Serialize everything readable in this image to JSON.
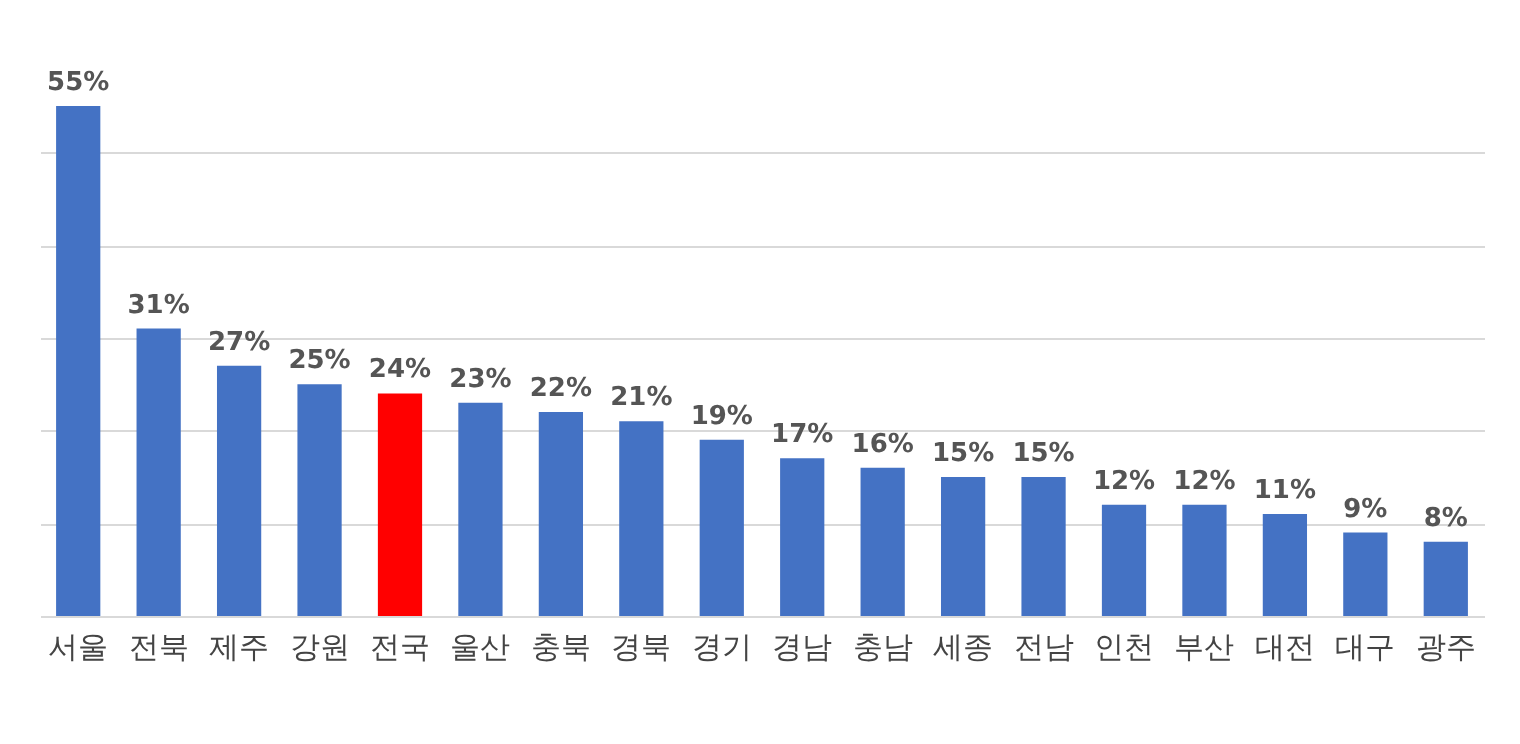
{
  "chart_data": {
    "type": "bar",
    "categories": [
      "서울",
      "전북",
      "제주",
      "강원",
      "전국",
      "울산",
      "충북",
      "경북",
      "경기",
      "경남",
      "충남",
      "세종",
      "전남",
      "인천",
      "부산",
      "대전",
      "대구",
      "광주"
    ],
    "values": [
      55,
      31,
      27,
      25,
      24,
      23,
      22,
      21,
      19,
      17,
      16,
      15,
      15,
      12,
      12,
      11,
      9,
      8
    ],
    "colors": [
      "#4472c4",
      "#4472c4",
      "#4472c4",
      "#4472c4",
      "#ff0000",
      "#4472c4",
      "#4472c4",
      "#4472c4",
      "#4472c4",
      "#4472c4",
      "#4472c4",
      "#4472c4",
      "#4472c4",
      "#4472c4",
      "#4472c4",
      "#4472c4",
      "#4472c4",
      "#4472c4"
    ],
    "value_labels": [
      "55%",
      "31%",
      "27%",
      "25%",
      "24%",
      "23%",
      "22%",
      "21%",
      "19%",
      "17%",
      "16%",
      "15%",
      "15%",
      "12%",
      "12%",
      "11%",
      "9%",
      "8%"
    ],
    "yticks": [
      {
        "value": 0,
        "label": null
      },
      {
        "value": 10,
        "label": null
      },
      {
        "value": 20,
        "label": null
      },
      {
        "value": 30,
        "label": null
      },
      {
        "value": 40,
        "label": null
      },
      {
        "value": 50,
        "label": null
      }
    ],
    "grid": "y",
    "tick_labels": "x"
  }
}
